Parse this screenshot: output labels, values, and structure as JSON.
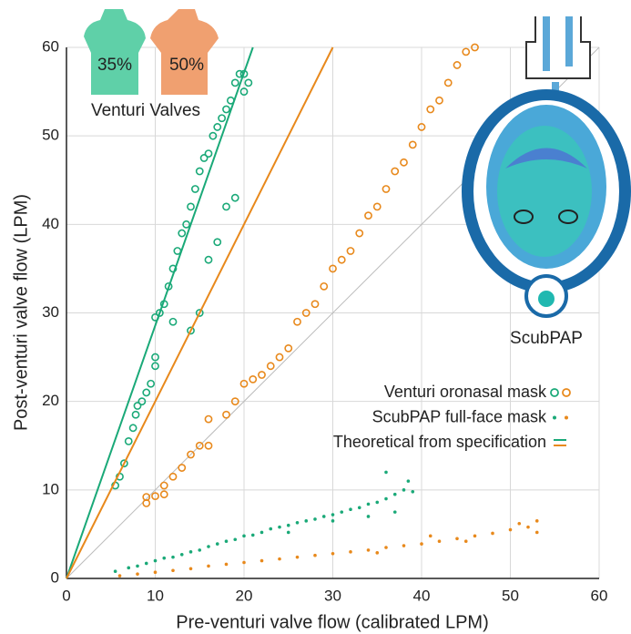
{
  "chart_data": {
    "type": "scatter",
    "xlabel": "Pre-venturi valve flow (calibrated LPM)",
    "ylabel": "Post-venturi valve flow (LPM)",
    "xlim": [
      0,
      60
    ],
    "ylim": [
      0,
      60
    ],
    "xticks": [
      0,
      10,
      20,
      30,
      40,
      50,
      60
    ],
    "yticks": [
      0,
      10,
      20,
      30,
      40,
      50,
      60
    ],
    "grid": true,
    "identity_line": true,
    "annotations": [
      "35%",
      "50%",
      "Venturi Valves",
      "ScubPAP"
    ],
    "series": [
      {
        "name": "Venturi oronasal mask",
        "marker": "circle",
        "groups": [
          {
            "color": "#1aa978",
            "x": [
              5.5,
              6,
              6.5,
              7,
              7.5,
              7.8,
              8,
              8.5,
              9,
              9.5,
              10,
              10,
              10.5,
              11,
              11.5,
              12,
              12.5,
              13,
              13.5,
              14,
              14.5,
              15,
              15.5,
              16,
              16.5,
              17,
              17.5,
              18,
              18.5,
              19,
              19.5,
              20,
              20,
              20.5,
              10,
              12,
              14,
              16,
              18,
              15,
              17,
              19
            ],
            "values": [
              10.5,
              11.5,
              13,
              15.5,
              17,
              18.5,
              19.5,
              20,
              21,
              22,
              24,
              29.5,
              30,
              31,
              33,
              35,
              37,
              39,
              40,
              42,
              44,
              46,
              47.5,
              48,
              50,
              51,
              52,
              53,
              54,
              56,
              57,
              57,
              55,
              56,
              25,
              29,
              28,
              36,
              42,
              30,
              38,
              43
            ]
          },
          {
            "color": "#e8891c",
            "x": [
              9,
              9,
              10,
              11,
              11,
              12,
              13,
              14,
              15,
              16,
              16,
              18,
              19,
              20,
              21,
              22,
              23,
              24,
              25,
              26,
              27,
              28,
              29,
              30,
              31,
              32,
              33,
              34,
              35,
              36,
              37,
              38,
              39,
              40,
              41,
              42,
              43,
              44,
              45,
              46
            ],
            "values": [
              8.5,
              9.2,
              9.3,
              9.5,
              10.5,
              11.5,
              12.5,
              14,
              15,
              15,
              18,
              18.5,
              20,
              22,
              22.5,
              23,
              24,
              25,
              26,
              29,
              30,
              31,
              33,
              35,
              36,
              37,
              39,
              41,
              42,
              44,
              46,
              47,
              49,
              51,
              53,
              54,
              56,
              58,
              59.5,
              60
            ]
          }
        ]
      },
      {
        "name": "ScubPAP full-face mask",
        "marker": "dot",
        "groups": [
          {
            "color": "#1aa978",
            "x": [
              5.5,
              7,
              8,
              9,
              10,
              11,
              12,
              13,
              14,
              15,
              16,
              17,
              18,
              19,
              20,
              21,
              22,
              23,
              24,
              25,
              26,
              27,
              28,
              29,
              30,
              31,
              32,
              33,
              34,
              35,
              36,
              37,
              38,
              38.5,
              39,
              36,
              37,
              34,
              30,
              25
            ],
            "values": [
              0.8,
              1.2,
              1.4,
              1.7,
              2,
              2.3,
              2.4,
              2.7,
              3,
              3.2,
              3.6,
              3.9,
              4.2,
              4.4,
              4.8,
              4.9,
              5.2,
              5.6,
              5.8,
              6,
              6.3,
              6.5,
              6.7,
              7,
              7.2,
              7.5,
              7.8,
              8,
              8.4,
              8.6,
              9,
              9.5,
              10,
              11,
              9.8,
              12,
              7.5,
              7,
              6.5,
              5.2
            ]
          },
          {
            "color": "#e8891c",
            "x": [
              6,
              8,
              10,
              12,
              14,
              16,
              18,
              20,
              22,
              24,
              26,
              28,
              30,
              32,
              34,
              36,
              38,
              40,
              42,
              44,
              46,
              48,
              50,
              52,
              53,
              53,
              51,
              45,
              41,
              35
            ],
            "values": [
              0.3,
              0.5,
              0.7,
              0.9,
              1.1,
              1.4,
              1.6,
              1.8,
              2,
              2.2,
              2.4,
              2.6,
              2.8,
              3,
              3.2,
              3.5,
              3.7,
              3.9,
              4.2,
              4.5,
              4.8,
              5.1,
              5.5,
              5.8,
              6.5,
              5.2,
              6.2,
              4.2,
              4.8,
              2.9
            ]
          }
        ]
      },
      {
        "name": "Theoretical from specification",
        "marker": "line",
        "groups": [
          {
            "color": "#1aa978",
            "x": [
              0,
              21
            ],
            "values": [
              0,
              60
            ]
          },
          {
            "color": "#e8891c",
            "x": [
              0,
              30
            ],
            "values": [
              0,
              60
            ]
          }
        ]
      }
    ]
  }
}
